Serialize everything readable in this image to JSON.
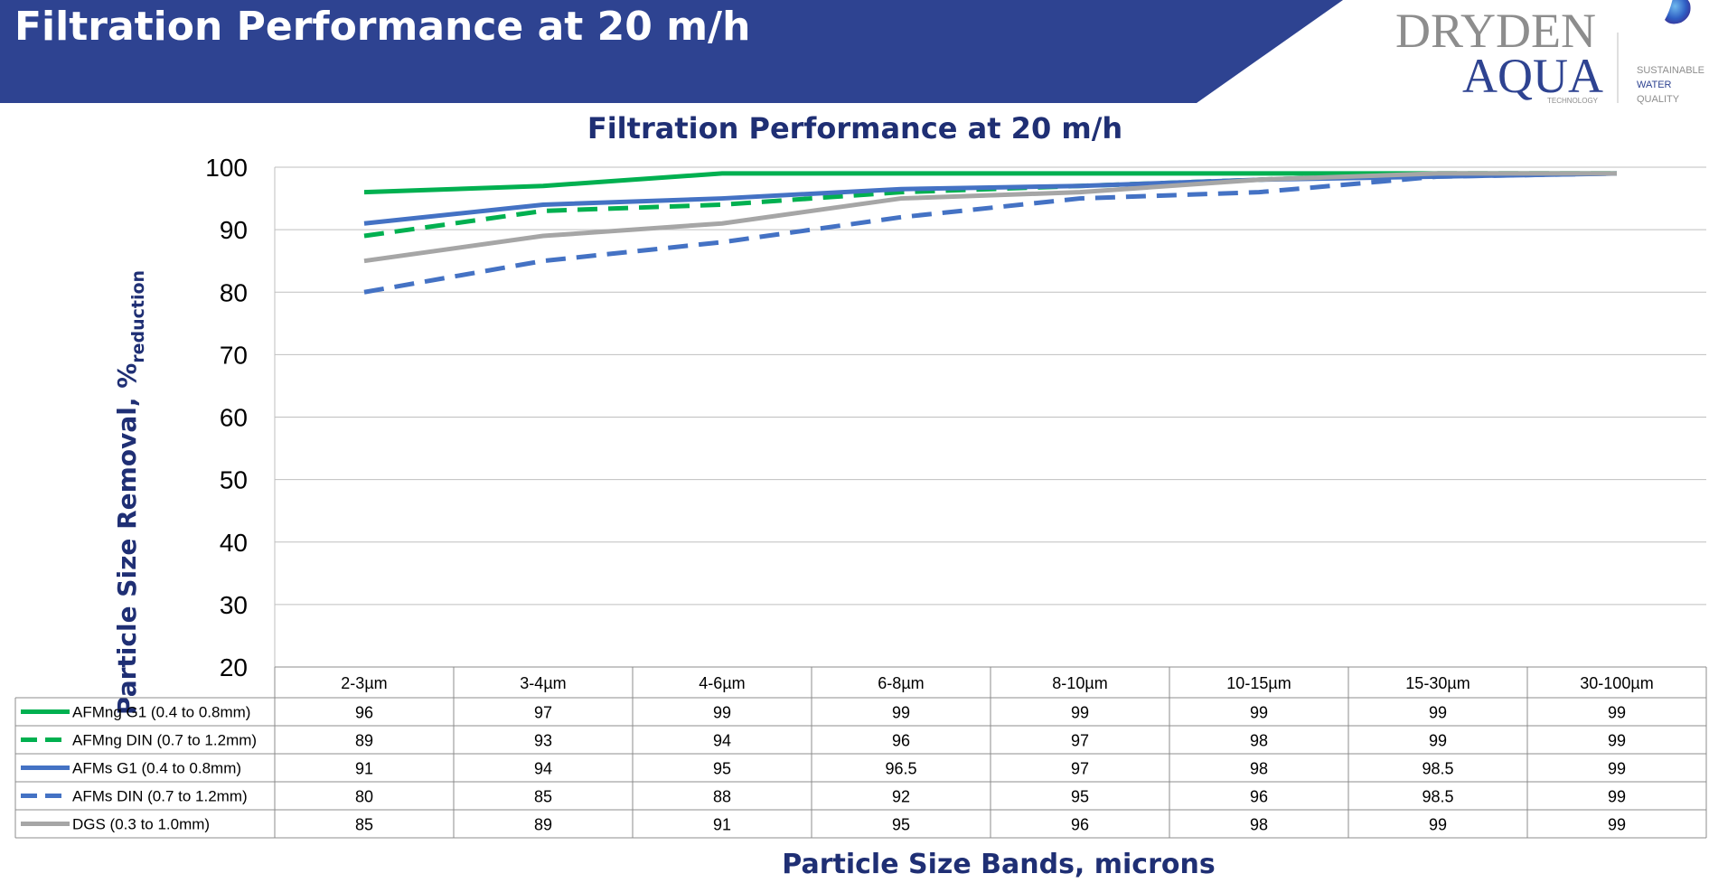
{
  "header": {
    "title": "Filtration Performance at 20 m/h"
  },
  "logo": {
    "line1": "DRYDEN",
    "line2": "AQUA",
    "sub": "TECHNOLOGY",
    "tagline": [
      "SUSTAINABLE",
      "WATER",
      "QUALITY"
    ]
  },
  "colors": {
    "banner": "#2e4391",
    "title_dark": "#1f2f74",
    "green": "#00b050",
    "blue": "#4472c4",
    "gray": "#a6a6a6"
  },
  "chart_data": {
    "type": "line",
    "title": "Filtration Performance at 20 m/h",
    "xlabel": "Particle Size Bands, microns",
    "ylabel_main": "Particle Size Removal, %",
    "ylabel_sub": "reduction",
    "ylim": [
      20,
      100
    ],
    "yticks": [
      20,
      30,
      40,
      50,
      60,
      70,
      80,
      90,
      100
    ],
    "grid": true,
    "legend": "data-table",
    "categories": [
      "2-3µm",
      "3-4µm",
      "4-6µm",
      "6-8µm",
      "8-10µm",
      "10-15µm",
      "15-30µm",
      "30-100µm"
    ],
    "series": [
      {
        "name": "AFMng G1 (0.4 to 0.8mm)",
        "color": "#00b050",
        "style": "solid",
        "values": [
          96,
          97,
          99,
          99,
          99,
          99,
          99,
          99
        ],
        "labels": [
          "96",
          "97",
          "99",
          "99",
          "99",
          "99",
          "99",
          "99"
        ]
      },
      {
        "name": "AFMng DIN (0.7 to 1.2mm)",
        "color": "#00b050",
        "style": "dashed",
        "values": [
          89,
          93,
          94,
          96,
          97,
          98,
          99,
          99
        ],
        "labels": [
          "89",
          "93",
          "94",
          "96",
          "97",
          "98",
          "99",
          "99"
        ]
      },
      {
        "name": "AFMs G1 (0.4 to 0.8mm)",
        "color": "#4472c4",
        "style": "solid",
        "values": [
          91,
          94,
          95,
          96.5,
          97,
          98,
          98.5,
          99
        ],
        "labels": [
          "91",
          "94",
          "95",
          "96.5",
          "97",
          "98",
          "98.5",
          "99"
        ]
      },
      {
        "name": "AFMs DIN (0.7 to 1.2mm)",
        "color": "#4472c4",
        "style": "dashed",
        "values": [
          80,
          85,
          88,
          92,
          95,
          96,
          98.5,
          99
        ],
        "labels": [
          "80",
          "85",
          "88",
          "92",
          "95",
          "96",
          "98.5",
          "99"
        ]
      },
      {
        "name": "DGS (0.3 to 1.0mm)",
        "color": "#a6a6a6",
        "style": "solid",
        "values": [
          85,
          89,
          91,
          95,
          96,
          98,
          99,
          99
        ],
        "labels": [
          "85",
          "89",
          "91",
          "95",
          "96",
          "98",
          "99",
          "99"
        ]
      }
    ]
  }
}
